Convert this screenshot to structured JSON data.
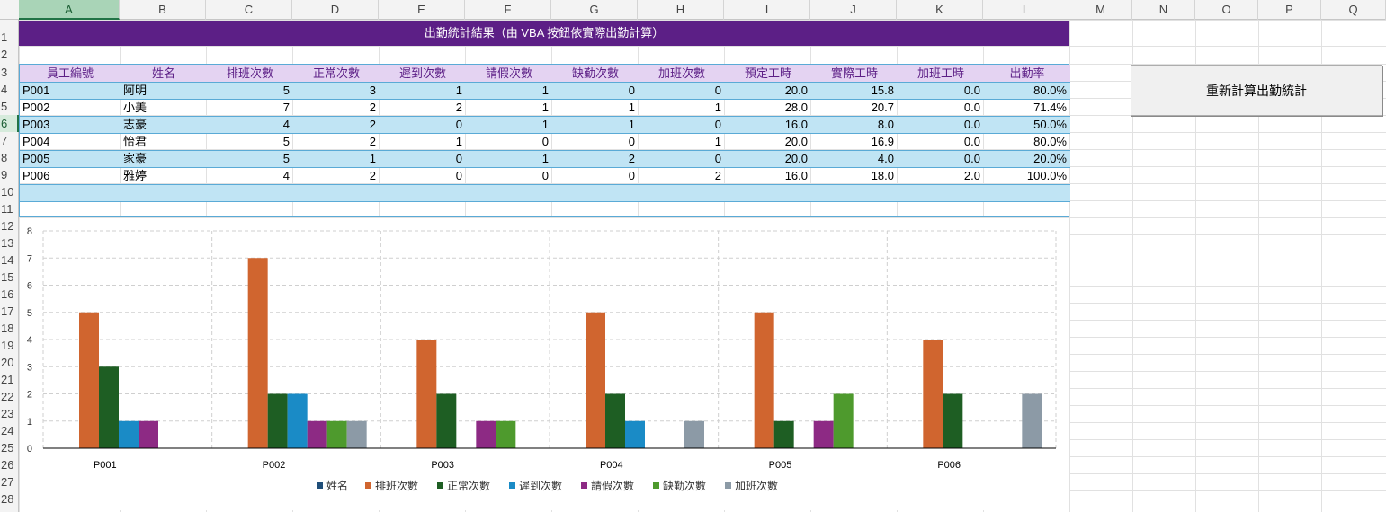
{
  "columns": [
    "A",
    "B",
    "C",
    "D",
    "E",
    "F",
    "G",
    "H",
    "I",
    "J",
    "K",
    "L",
    "M",
    "N",
    "O",
    "P",
    "Q"
  ],
  "rows": [
    "1",
    "2",
    "3",
    "4",
    "5",
    "6",
    "7",
    "8",
    "9",
    "10",
    "11",
    "12",
    "13",
    "14",
    "15",
    "16",
    "17",
    "18",
    "19",
    "20",
    "21",
    "22",
    "23",
    "24",
    "25",
    "26",
    "27",
    "28"
  ],
  "selected_cell": {
    "column": "A",
    "row": "6"
  },
  "title": "出勤統計結果（由 VBA 按鈕依實際出勤計算）",
  "table": {
    "headers": [
      "員工編號",
      "姓名",
      "排班次數",
      "正常次數",
      "遲到次數",
      "請假次數",
      "缺勤次數",
      "加班次數",
      "預定工時",
      "實際工時",
      "加班工時",
      "出勤率"
    ],
    "rows": [
      [
        "P001",
        "阿明",
        "5",
        "3",
        "1",
        "1",
        "0",
        "0",
        "20.0",
        "15.8",
        "0.0",
        "80.0%"
      ],
      [
        "P002",
        "小美",
        "7",
        "2",
        "2",
        "1",
        "1",
        "1",
        "28.0",
        "20.7",
        "0.0",
        "71.4%"
      ],
      [
        "P003",
        "志豪",
        "4",
        "2",
        "0",
        "1",
        "1",
        "0",
        "16.0",
        "8.0",
        "0.0",
        "50.0%"
      ],
      [
        "P004",
        "怡君",
        "5",
        "2",
        "1",
        "0",
        "0",
        "1",
        "20.0",
        "16.9",
        "0.0",
        "80.0%"
      ],
      [
        "P005",
        "家豪",
        "5",
        "1",
        "0",
        "1",
        "2",
        "0",
        "20.0",
        "4.0",
        "0.0",
        "20.0%"
      ],
      [
        "P006",
        "雅婷",
        "4",
        "2",
        "0",
        "0",
        "0",
        "2",
        "16.0",
        "18.0",
        "2.0",
        "100.0%"
      ]
    ]
  },
  "button": {
    "label": "重新計算出勤統計"
  },
  "colors": {
    "title_bg": "#5c1f86",
    "header_bg": "#e4d3f2",
    "band_bg": "#c0e4f4",
    "border": "#5aaad6"
  },
  "chart_data": {
    "type": "bar",
    "categories": [
      "P001",
      "P002",
      "P003",
      "P004",
      "P005",
      "P006"
    ],
    "series": [
      {
        "name": "姓名",
        "color": "#1f4e79",
        "values": [
          0,
          0,
          0,
          0,
          0,
          0
        ]
      },
      {
        "name": "排班次數",
        "color": "#d0652f",
        "values": [
          5,
          7,
          4,
          5,
          5,
          4
        ]
      },
      {
        "name": "正常次數",
        "color": "#1e5e23",
        "values": [
          3,
          2,
          2,
          2,
          1,
          2
        ]
      },
      {
        "name": "遲到次數",
        "color": "#1a8bc6",
        "values": [
          1,
          2,
          0,
          1,
          0,
          0
        ]
      },
      {
        "name": "請假次數",
        "color": "#8d2a84",
        "values": [
          1,
          1,
          1,
          0,
          1,
          0
        ]
      },
      {
        "name": "缺勤次數",
        "color": "#4e9a2d",
        "values": [
          0,
          1,
          1,
          0,
          2,
          0
        ]
      },
      {
        "name": "加班次數",
        "color": "#8c9aa6",
        "values": [
          0,
          1,
          0,
          1,
          0,
          2
        ]
      }
    ],
    "ylim": [
      0,
      8
    ],
    "yticks": [
      "0",
      "1",
      "2",
      "3",
      "4",
      "5",
      "6",
      "7",
      "8"
    ],
    "grid": true,
    "legend_position": "bottom"
  }
}
